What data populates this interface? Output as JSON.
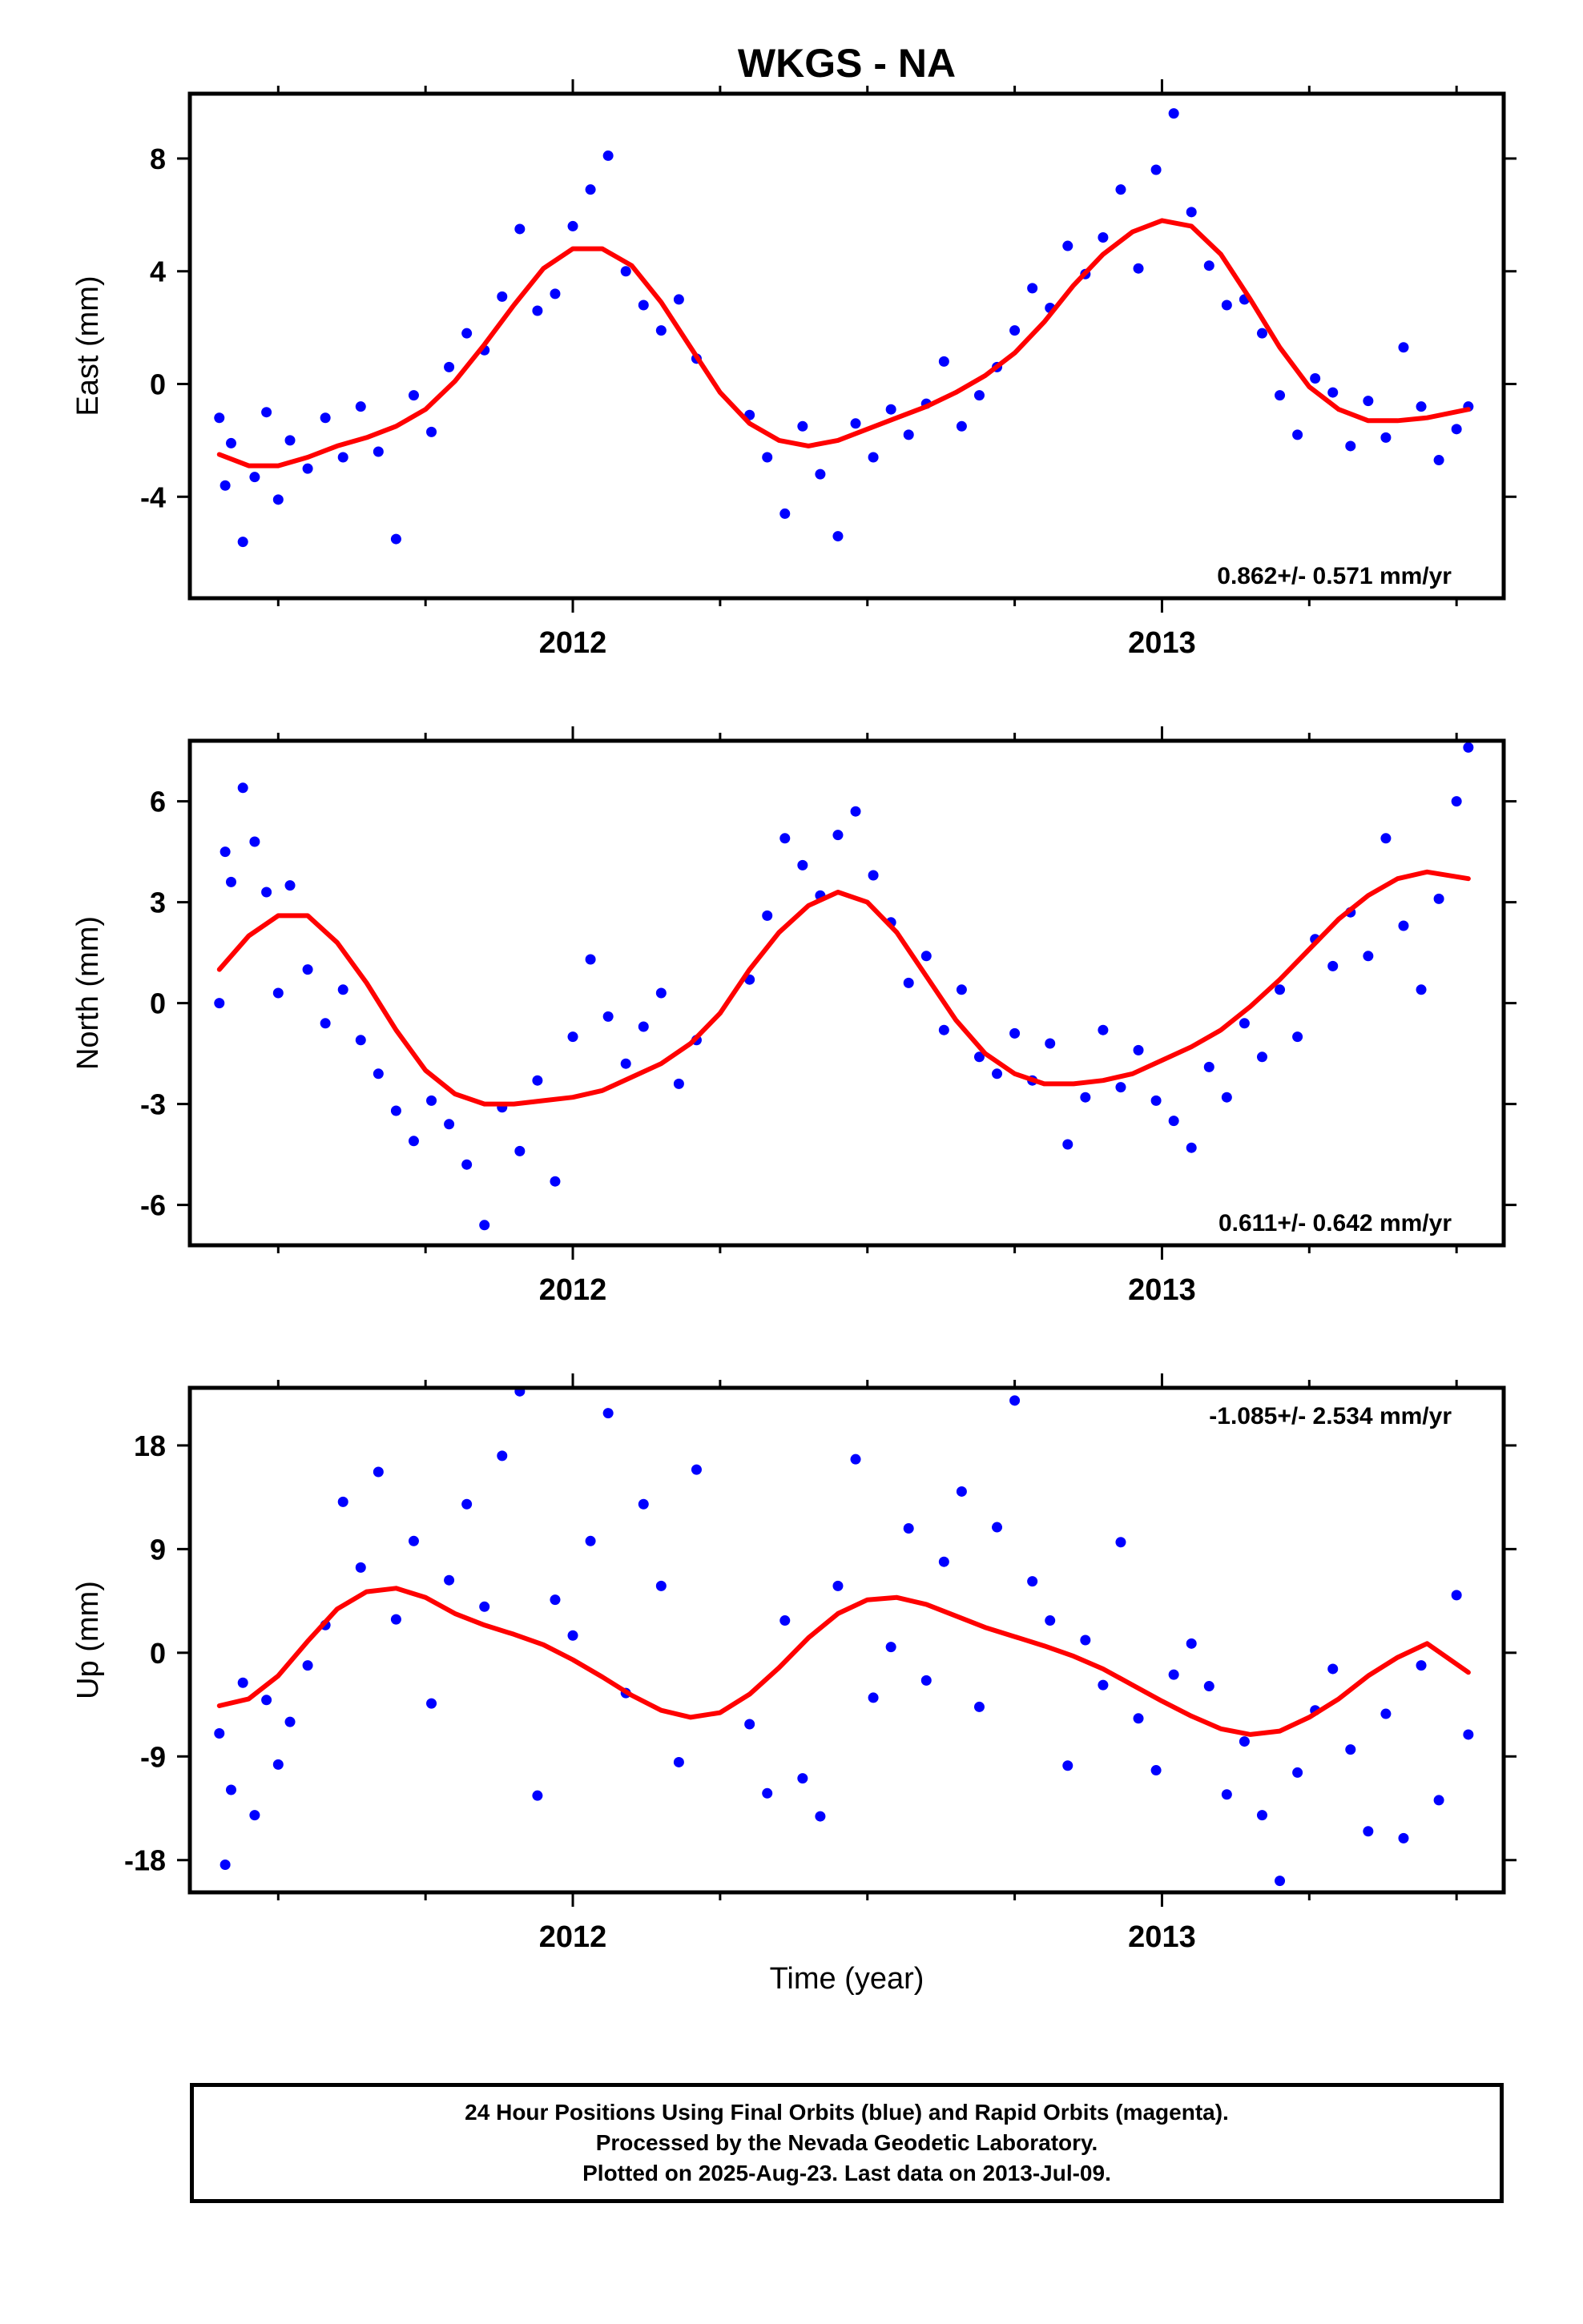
{
  "title": "WKGS - NA",
  "colors": {
    "data_points": "#0000ff",
    "fit_line": "#ff0000",
    "frame": "#000000",
    "background": "#ffffff"
  },
  "chart_data": [
    {
      "type": "scatter",
      "title": "WKGS - NA",
      "xlabel": "",
      "ylabel": "East (mm)",
      "xlim": [
        2011.35,
        2013.58
      ],
      "ylim": [
        -7.6,
        10.3
      ],
      "x_ticks": [
        "2012",
        "2013"
      ],
      "y_ticks": [
        "-4",
        "0",
        "4",
        "8"
      ],
      "y_tick_values": [
        -4,
        0,
        4,
        8
      ],
      "rate_label": "0.862+/- 0.571 mm/yr",
      "rate_position": "bottom-right",
      "fit_series": {
        "x": [
          2011.4,
          2011.45,
          2011.5,
          2011.55,
          2011.6,
          2011.65,
          2011.7,
          2011.75,
          2011.8,
          2011.85,
          2011.9,
          2011.95,
          2012.0,
          2012.05,
          2012.1,
          2012.15,
          2012.2,
          2012.25,
          2012.3,
          2012.35,
          2012.4,
          2012.45,
          2012.5,
          2012.55,
          2012.6,
          2012.65,
          2012.7,
          2012.75,
          2012.8,
          2012.85,
          2012.9,
          2012.95,
          2013.0,
          2013.05,
          2013.1,
          2013.15,
          2013.2,
          2013.25,
          2013.3,
          2013.35,
          2013.4,
          2013.45,
          2013.52
        ],
        "y": [
          -2.5,
          -2.9,
          -2.9,
          -2.6,
          -2.2,
          -1.9,
          -1.5,
          -0.9,
          0.1,
          1.4,
          2.8,
          4.1,
          4.8,
          4.8,
          4.2,
          2.9,
          1.3,
          -0.3,
          -1.4,
          -2.0,
          -2.2,
          -2.0,
          -1.6,
          -1.2,
          -0.8,
          -0.3,
          0.3,
          1.1,
          2.2,
          3.5,
          4.6,
          5.4,
          5.8,
          5.6,
          4.6,
          3.0,
          1.3,
          -0.1,
          -0.9,
          -1.3,
          -1.3,
          -1.2,
          -0.9
        ]
      },
      "data_series": {
        "x": [
          2011.4,
          2011.41,
          2011.42,
          2011.44,
          2011.46,
          2011.48,
          2011.5,
          2011.52,
          2011.55,
          2011.58,
          2011.61,
          2011.64,
          2011.67,
          2011.7,
          2011.73,
          2011.76,
          2011.79,
          2011.82,
          2011.85,
          2011.88,
          2011.91,
          2011.94,
          2011.97,
          2012.0,
          2012.03,
          2012.06,
          2012.09,
          2012.12,
          2012.15,
          2012.18,
          2012.21,
          2012.3,
          2012.33,
          2012.36,
          2012.39,
          2012.42,
          2012.45,
          2012.48,
          2012.51,
          2012.54,
          2012.57,
          2012.6,
          2012.63,
          2012.66,
          2012.69,
          2012.72,
          2012.75,
          2012.78,
          2012.81,
          2012.84,
          2012.87,
          2012.9,
          2012.93,
          2012.96,
          2012.99,
          2013.02,
          2013.05,
          2013.08,
          2013.11,
          2013.14,
          2013.17,
          2013.2,
          2013.23,
          2013.26,
          2013.29,
          2013.32,
          2013.35,
          2013.38,
          2013.41,
          2013.44,
          2013.47,
          2013.5,
          2013.52
        ],
        "y": [
          -1.2,
          -3.6,
          -2.1,
          -5.6,
          -3.3,
          -1.0,
          -4.1,
          -2.0,
          -3.0,
          -1.2,
          -2.6,
          -0.8,
          -2.4,
          -5.5,
          -0.4,
          -1.7,
          0.6,
          1.8,
          1.2,
          3.1,
          5.5,
          2.6,
          3.2,
          5.6,
          6.9,
          8.1,
          4.0,
          2.8,
          1.9,
          3.0,
          0.9,
          -1.1,
          -2.6,
          -4.6,
          -1.5,
          -3.2,
          -5.4,
          -1.4,
          -2.6,
          -0.9,
          -1.8,
          -0.7,
          0.8,
          -1.5,
          -0.4,
          0.6,
          1.9,
          3.4,
          2.7,
          4.9,
          3.9,
          5.2,
          6.9,
          4.1,
          7.6,
          9.6,
          6.1,
          4.2,
          2.8,
          3.0,
          1.8,
          -0.4,
          -1.8,
          0.2,
          -0.3,
          -2.2,
          -0.6,
          -1.9,
          1.3,
          -0.8,
          -2.7,
          -1.6,
          -0.8
        ]
      }
    },
    {
      "type": "scatter",
      "xlabel": "",
      "ylabel": "North (mm)",
      "xlim": [
        2011.35,
        2013.58
      ],
      "ylim": [
        -7.2,
        7.8
      ],
      "x_ticks": [
        "2012",
        "2013"
      ],
      "y_ticks": [
        "-6",
        "-3",
        "0",
        "3",
        "6"
      ],
      "y_tick_values": [
        -6,
        -3,
        0,
        3,
        6
      ],
      "rate_label": "0.611+/- 0.642 mm/yr",
      "rate_position": "bottom-right",
      "fit_series": {
        "x": [
          2011.4,
          2011.45,
          2011.5,
          2011.55,
          2011.6,
          2011.65,
          2011.7,
          2011.75,
          2011.8,
          2011.85,
          2011.9,
          2011.95,
          2012.0,
          2012.05,
          2012.1,
          2012.15,
          2012.2,
          2012.25,
          2012.3,
          2012.35,
          2012.4,
          2012.45,
          2012.5,
          2012.55,
          2012.6,
          2012.65,
          2012.7,
          2012.75,
          2012.8,
          2012.85,
          2012.9,
          2012.95,
          2013.0,
          2013.05,
          2013.1,
          2013.15,
          2013.2,
          2013.25,
          2013.3,
          2013.35,
          2013.4,
          2013.45,
          2013.52
        ],
        "y": [
          1.0,
          2.0,
          2.6,
          2.6,
          1.8,
          0.6,
          -0.8,
          -2.0,
          -2.7,
          -3.0,
          -3.0,
          -2.9,
          -2.8,
          -2.6,
          -2.2,
          -1.8,
          -1.2,
          -0.3,
          1.0,
          2.1,
          2.9,
          3.3,
          3.0,
          2.1,
          0.8,
          -0.5,
          -1.5,
          -2.1,
          -2.4,
          -2.4,
          -2.3,
          -2.1,
          -1.7,
          -1.3,
          -0.8,
          -0.1,
          0.7,
          1.6,
          2.5,
          3.2,
          3.7,
          3.9,
          3.7
        ]
      },
      "data_series": {
        "x": [
          2011.4,
          2011.41,
          2011.42,
          2011.44,
          2011.46,
          2011.48,
          2011.5,
          2011.52,
          2011.55,
          2011.58,
          2011.61,
          2011.64,
          2011.67,
          2011.7,
          2011.73,
          2011.76,
          2011.79,
          2011.82,
          2011.85,
          2011.88,
          2011.91,
          2011.94,
          2011.97,
          2012.0,
          2012.03,
          2012.06,
          2012.09,
          2012.12,
          2012.15,
          2012.18,
          2012.21,
          2012.3,
          2012.33,
          2012.36,
          2012.39,
          2012.42,
          2012.45,
          2012.48,
          2012.51,
          2012.54,
          2012.57,
          2012.6,
          2012.63,
          2012.66,
          2012.69,
          2012.72,
          2012.75,
          2012.78,
          2012.81,
          2012.84,
          2012.87,
          2012.9,
          2012.93,
          2012.96,
          2012.99,
          2013.02,
          2013.05,
          2013.08,
          2013.11,
          2013.14,
          2013.17,
          2013.2,
          2013.23,
          2013.26,
          2013.29,
          2013.32,
          2013.35,
          2013.38,
          2013.41,
          2013.44,
          2013.47,
          2013.5,
          2013.52
        ],
        "y": [
          0.0,
          4.5,
          3.6,
          6.4,
          4.8,
          3.3,
          0.3,
          3.5,
          1.0,
          -0.6,
          0.4,
          -1.1,
          -2.1,
          -3.2,
          -4.1,
          -2.9,
          -3.6,
          -4.8,
          -6.6,
          -3.1,
          -4.4,
          -2.3,
          -5.3,
          -1.0,
          1.3,
          -0.4,
          -1.8,
          -0.7,
          0.3,
          -2.4,
          -1.1,
          0.7,
          2.6,
          4.9,
          4.1,
          3.2,
          5.0,
          5.7,
          3.8,
          2.4,
          0.6,
          1.4,
          -0.8,
          0.4,
          -1.6,
          -2.1,
          -0.9,
          -2.3,
          -1.2,
          -4.2,
          -2.8,
          -0.8,
          -2.5,
          -1.4,
          -2.9,
          -3.5,
          -4.3,
          -1.9,
          -2.8,
          -0.6,
          -1.6,
          0.4,
          -1.0,
          1.9,
          1.1,
          2.7,
          1.4,
          4.9,
          2.3,
          0.4,
          3.1,
          6.0,
          7.6
        ]
      }
    },
    {
      "type": "scatter",
      "xlabel": "Time (year)",
      "ylabel": "Up (mm)",
      "xlim": [
        2011.35,
        2013.58
      ],
      "ylim": [
        -20.8,
        23.0
      ],
      "x_ticks": [
        "2012",
        "2013"
      ],
      "y_ticks": [
        "-18",
        "-9",
        "0",
        "9",
        "18"
      ],
      "y_tick_values": [
        -18,
        -9,
        0,
        9,
        18
      ],
      "rate_label": "-1.085+/- 2.534 mm/yr",
      "rate_position": "top-right",
      "fit_series": {
        "x": [
          2011.4,
          2011.45,
          2011.5,
          2011.55,
          2011.6,
          2011.65,
          2011.7,
          2011.75,
          2011.8,
          2011.85,
          2011.9,
          2011.95,
          2012.0,
          2012.05,
          2012.1,
          2012.15,
          2012.2,
          2012.25,
          2012.3,
          2012.35,
          2012.4,
          2012.45,
          2012.5,
          2012.55,
          2012.6,
          2012.65,
          2012.7,
          2012.75,
          2012.8,
          2012.85,
          2012.9,
          2012.95,
          2013.0,
          2013.05,
          2013.1,
          2013.15,
          2013.2,
          2013.25,
          2013.3,
          2013.35,
          2013.4,
          2013.45,
          2013.52
        ],
        "y": [
          -4.6,
          -4.0,
          -2.0,
          1.0,
          3.8,
          5.3,
          5.6,
          4.8,
          3.4,
          2.4,
          1.6,
          0.7,
          -0.6,
          -2.1,
          -3.7,
          -5.0,
          -5.6,
          -5.2,
          -3.6,
          -1.3,
          1.3,
          3.4,
          4.6,
          4.8,
          4.2,
          3.2,
          2.2,
          1.4,
          0.6,
          -0.3,
          -1.4,
          -2.8,
          -4.2,
          -5.5,
          -6.6,
          -7.1,
          -6.8,
          -5.6,
          -4.0,
          -2.0,
          -0.4,
          0.8,
          -1.7
        ]
      },
      "data_series": {
        "x": [
          2011.4,
          2011.41,
          2011.42,
          2011.44,
          2011.46,
          2011.48,
          2011.5,
          2011.52,
          2011.55,
          2011.58,
          2011.61,
          2011.64,
          2011.67,
          2011.7,
          2011.73,
          2011.76,
          2011.79,
          2011.82,
          2011.85,
          2011.88,
          2011.91,
          2011.94,
          2011.97,
          2012.0,
          2012.03,
          2012.06,
          2012.09,
          2012.12,
          2012.15,
          2012.18,
          2012.21,
          2012.3,
          2012.33,
          2012.36,
          2012.39,
          2012.42,
          2012.45,
          2012.48,
          2012.51,
          2012.54,
          2012.57,
          2012.6,
          2012.63,
          2012.66,
          2012.69,
          2012.72,
          2012.75,
          2012.78,
          2012.81,
          2012.84,
          2012.87,
          2012.9,
          2012.93,
          2012.96,
          2012.99,
          2013.02,
          2013.05,
          2013.08,
          2013.11,
          2013.14,
          2013.17,
          2013.2,
          2013.23,
          2013.26,
          2013.29,
          2013.32,
          2013.35,
          2013.38,
          2013.41,
          2013.44,
          2013.47,
          2013.5,
          2013.52
        ],
        "y": [
          -7.0,
          -18.4,
          -11.9,
          -2.6,
          -14.1,
          -4.1,
          -9.7,
          -6.0,
          -1.1,
          2.4,
          13.1,
          7.4,
          15.7,
          2.9,
          9.7,
          -4.4,
          6.3,
          12.9,
          4.0,
          17.1,
          22.7,
          -12.4,
          4.6,
          1.5,
          9.7,
          20.8,
          -3.5,
          12.9,
          5.8,
          -9.5,
          15.9,
          -6.2,
          -12.2,
          2.8,
          -10.9,
          -14.2,
          5.8,
          16.8,
          -3.9,
          0.5,
          10.8,
          -2.4,
          7.9,
          14.0,
          -4.7,
          10.9,
          21.9,
          6.2,
          2.8,
          -9.8,
          1.1,
          -2.8,
          9.6,
          -5.7,
          -10.2,
          -1.9,
          0.8,
          -2.9,
          -12.3,
          -7.7,
          -14.1,
          -19.8,
          -10.4,
          -5.0,
          -1.4,
          -8.4,
          -15.5,
          -5.3,
          -16.1,
          -1.1,
          -12.8,
          5.0,
          -7.1
        ]
      }
    }
  ],
  "footer": {
    "line1": "24 Hour Positions Using Final Orbits (blue) and Rapid Orbits (magenta).",
    "line2": "Processed by the Nevada Geodetic Laboratory.",
    "line3": "Plotted on 2025-Aug-23. Last data on 2013-Jul-09."
  }
}
